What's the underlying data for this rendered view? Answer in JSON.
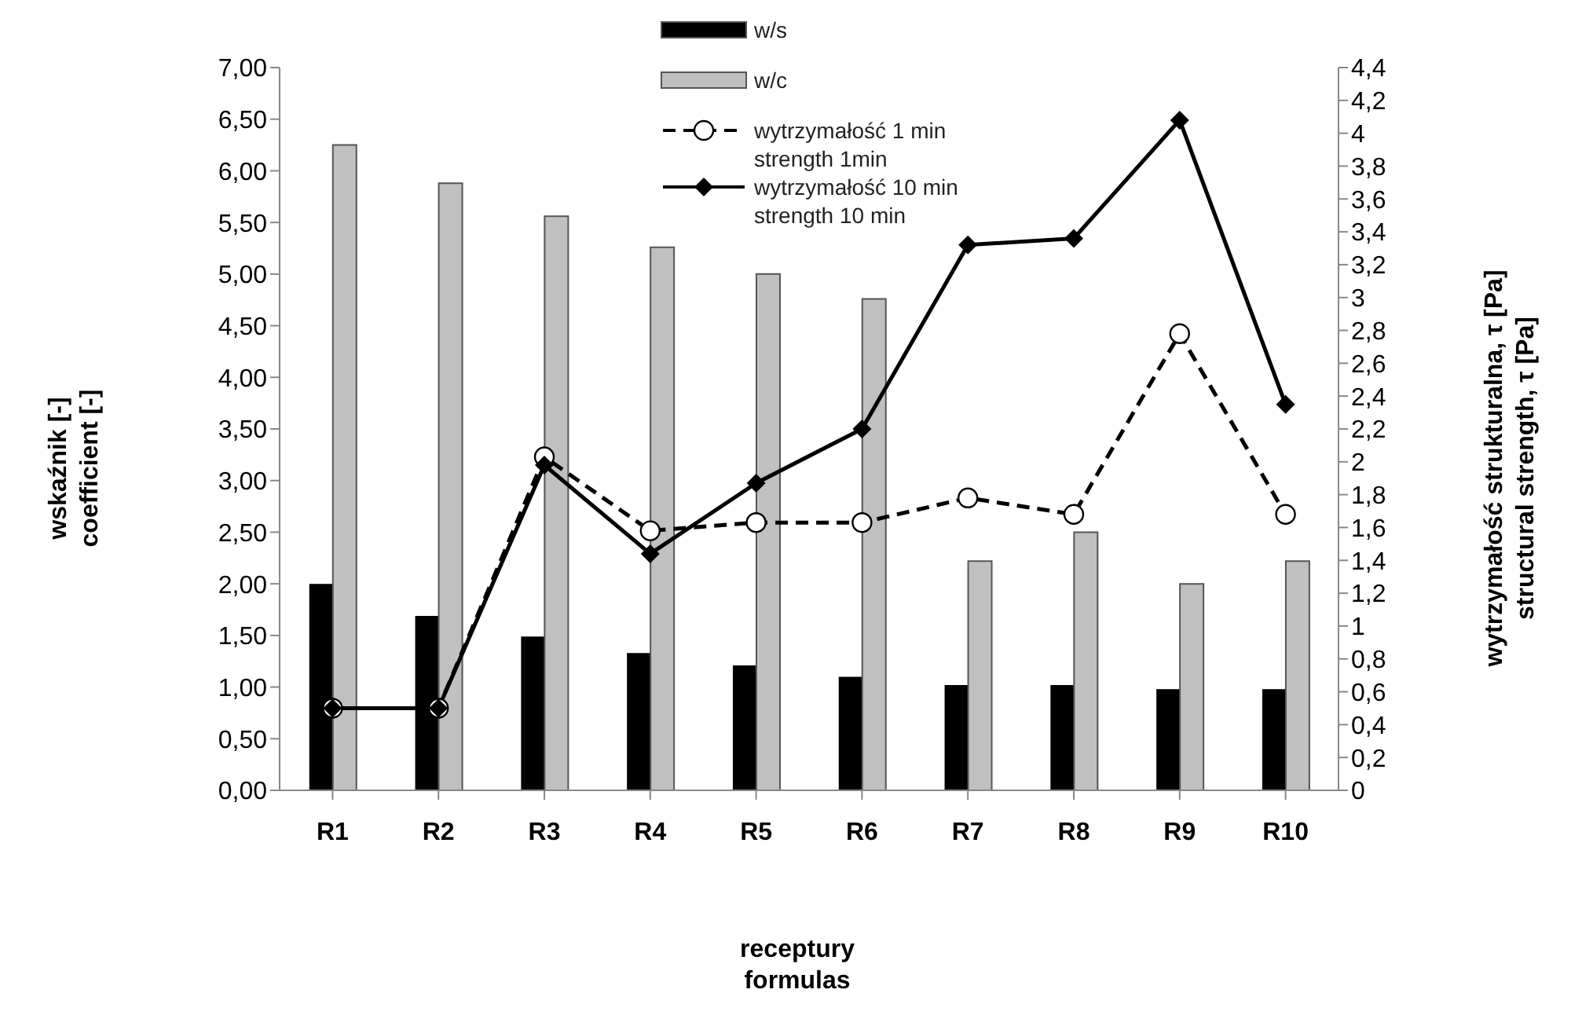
{
  "chart_data": {
    "type": "bar",
    "xlabel": "receptury\nformulas",
    "ylabel": "wskaźnik [-]\ncoefficient [-]",
    "y2label": "wytrzymałość strukturalna, τ [Pa]\nstructural strength, τ [Pa]",
    "categories": [
      "R1",
      "R2",
      "R3",
      "R4",
      "R5",
      "R6",
      "R7",
      "R8",
      "R9",
      "R10"
    ],
    "series": [
      {
        "name": "w/s",
        "color": "#000000",
        "values": [
          2.0,
          1.69,
          1.49,
          1.33,
          1.21,
          1.1,
          1.02,
          1.02,
          0.98,
          0.98
        ]
      },
      {
        "name": "w/c",
        "color": "#c0c0c0",
        "values": [
          6.25,
          5.88,
          5.56,
          5.26,
          5.0,
          4.76,
          2.22,
          2.5,
          2.0,
          2.22
        ]
      },
      {
        "name": "wytrzymałość 1 min\nstrength 1min",
        "type": "line",
        "axis": "y2",
        "color": "#000000",
        "marker": "circle",
        "line_style": "dashed",
        "values": [
          0.5,
          0.5,
          2.03,
          1.58,
          1.63,
          1.63,
          1.78,
          1.68,
          2.78,
          1.68
        ]
      },
      {
        "name": "wytrzymałość 10 min\nstrength 10 min",
        "type": "line",
        "axis": "y2",
        "color": "#000000",
        "marker": "diamond",
        "line_style": "solid",
        "values": [
          0.5,
          0.5,
          1.98,
          1.44,
          1.87,
          2.2,
          3.32,
          3.36,
          4.08,
          2.35
        ]
      }
    ],
    "ylim": [
      0,
      7
    ],
    "yticks": [
      {
        "value": 0,
        "label": "0,00"
      },
      {
        "value": 0.5,
        "label": "0,50"
      },
      {
        "value": 1,
        "label": "1,00"
      },
      {
        "value": 1.5,
        "label": "1,50"
      },
      {
        "value": 2,
        "label": "2,00"
      },
      {
        "value": 2.5,
        "label": "2,50"
      },
      {
        "value": 3,
        "label": "3,00"
      },
      {
        "value": 3.5,
        "label": "3,50"
      },
      {
        "value": 4,
        "label": "4,00"
      },
      {
        "value": 4.5,
        "label": "4,50"
      },
      {
        "value": 5,
        "label": "5,00"
      },
      {
        "value": 5.5,
        "label": "5,50"
      },
      {
        "value": 6,
        "label": "6,00"
      },
      {
        "value": 6.5,
        "label": "6,50"
      },
      {
        "value": 7,
        "label": "7,00"
      }
    ],
    "y2lim": [
      0,
      4.4
    ],
    "y2ticks": [
      0,
      {
        "value": 0.2,
        "label": "0,2"
      },
      {
        "value": 0.4,
        "label": "0,4"
      },
      {
        "value": 0.6,
        "label": "0,6"
      },
      {
        "value": 0.8,
        "label": "0,8"
      },
      1,
      {
        "value": 1.2,
        "label": "1,2"
      },
      {
        "value": 1.4,
        "label": "1,4"
      },
      {
        "value": 1.6,
        "label": "1,6"
      },
      {
        "value": 1.8,
        "label": "1,8"
      },
      2,
      {
        "value": 2.2,
        "label": "2,2"
      },
      {
        "value": 2.4,
        "label": "2,4"
      },
      {
        "value": 2.6,
        "label": "2,6"
      },
      {
        "value": 2.8,
        "label": "2,8"
      },
      3,
      {
        "value": 3.2,
        "label": "3,2"
      },
      {
        "value": 3.4,
        "label": "3,4"
      },
      {
        "value": 3.6,
        "label": "3,6"
      },
      {
        "value": 3.8,
        "label": "3,8"
      },
      4,
      {
        "value": 4.2,
        "label": "4,2"
      },
      {
        "value": 4.4,
        "label": "4,4"
      }
    ],
    "grid": false,
    "legend": "top"
  }
}
